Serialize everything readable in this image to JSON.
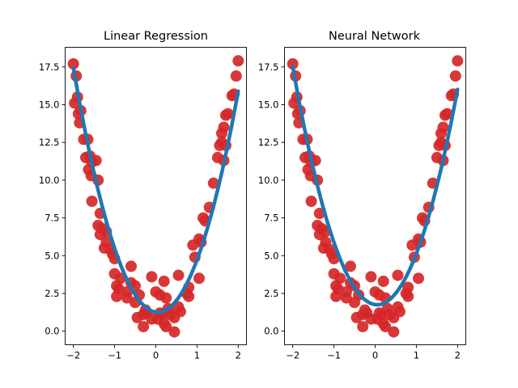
{
  "chart_data": [
    {
      "type": "scatter",
      "title": "Linear Regression",
      "xlim": [
        -2.2,
        2.2
      ],
      "ylim": [
        -0.9,
        18.8
      ],
      "xticks": [
        -2,
        -1,
        0,
        1,
        2
      ],
      "xtick_labels": [
        "−2",
        "−1",
        "0",
        "1",
        "2"
      ],
      "yticks": [
        0,
        2.5,
        5,
        7.5,
        10,
        12.5,
        15,
        17.5
      ],
      "ytick_labels": [
        "0.0",
        "2.5",
        "5.0",
        "7.5",
        "10.0",
        "12.5",
        "15.0",
        "17.5"
      ],
      "points_color": "#d62728",
      "line_color": "#1f77b4",
      "points": [
        [
          -2.0,
          17.7
        ],
        [
          -1.93,
          16.9
        ],
        [
          -1.97,
          15.1
        ],
        [
          -1.9,
          15.5
        ],
        [
          -1.88,
          14.4
        ],
        [
          -1.82,
          14.6
        ],
        [
          -1.85,
          13.8
        ],
        [
          -1.75,
          12.7
        ],
        [
          -1.65,
          12.7
        ],
        [
          -1.7,
          11.5
        ],
        [
          -1.6,
          11.6
        ],
        [
          -1.55,
          11.2
        ],
        [
          -1.45,
          11.3
        ],
        [
          -1.63,
          10.7
        ],
        [
          -1.57,
          10.3
        ],
        [
          -1.4,
          10.0
        ],
        [
          -1.55,
          8.6
        ],
        [
          -1.35,
          7.8
        ],
        [
          -1.4,
          7.0
        ],
        [
          -1.3,
          6.8
        ],
        [
          -1.2,
          6.6
        ],
        [
          -1.35,
          6.4
        ],
        [
          -1.2,
          5.9
        ],
        [
          -1.25,
          5.5
        ],
        [
          -1.1,
          5.4
        ],
        [
          -1.05,
          5.1
        ],
        [
          -1.0,
          4.8
        ],
        [
          -0.6,
          4.3
        ],
        [
          -1.0,
          3.8
        ],
        [
          -0.85,
          3.5
        ],
        [
          -0.95,
          3.0
        ],
        [
          -0.9,
          2.8
        ],
        [
          -0.6,
          3.2
        ],
        [
          -0.5,
          3.0
        ],
        [
          -0.7,
          2.6
        ],
        [
          -0.95,
          2.3
        ],
        [
          -0.7,
          2.2
        ],
        [
          -0.4,
          2.4
        ],
        [
          -0.5,
          1.9
        ],
        [
          -0.3,
          1.1
        ],
        [
          -0.25,
          1.4
        ],
        [
          -0.2,
          1.2
        ],
        [
          -0.45,
          0.9
        ],
        [
          -0.3,
          0.3
        ],
        [
          -0.1,
          0.8
        ],
        [
          0.05,
          0.8
        ],
        [
          0.15,
          1.1
        ],
        [
          0.3,
          1.5
        ],
        [
          0.2,
          0.5
        ],
        [
          0.35,
          1.1
        ],
        [
          0.45,
          0.9
        ],
        [
          0.25,
          0.3
        ],
        [
          0.45,
          -0.05
        ],
        [
          0.1,
          1.2
        ],
        [
          0.0,
          2.6
        ],
        [
          0.1,
          2.4
        ],
        [
          0.25,
          2.2
        ],
        [
          -0.1,
          3.6
        ],
        [
          0.2,
          3.3
        ],
        [
          0.55,
          1.6
        ],
        [
          0.6,
          1.3
        ],
        [
          0.75,
          2.5
        ],
        [
          0.8,
          2.3
        ],
        [
          0.8,
          2.9
        ],
        [
          0.55,
          3.7
        ],
        [
          1.05,
          3.5
        ],
        [
          0.95,
          4.9
        ],
        [
          0.9,
          5.7
        ],
        [
          1.1,
          5.9
        ],
        [
          1.05,
          6.1
        ],
        [
          1.15,
          7.5
        ],
        [
          1.2,
          7.3
        ],
        [
          1.3,
          8.2
        ],
        [
          1.4,
          9.8
        ],
        [
          1.5,
          11.5
        ],
        [
          1.55,
          12.3
        ],
        [
          1.6,
          13.1
        ],
        [
          1.65,
          11.3
        ],
        [
          1.7,
          12.3
        ],
        [
          1.65,
          13.5
        ],
        [
          1.7,
          14.3
        ],
        [
          1.75,
          14.4
        ],
        [
          1.85,
          15.6
        ],
        [
          1.9,
          15.7
        ],
        [
          1.95,
          16.9
        ],
        [
          2.0,
          17.9
        ],
        [
          1.6,
          12.5
        ]
      ],
      "fit": {
        "a": 3.85,
        "b": 0.05,
        "c": 1.25
      }
    },
    {
      "type": "scatter",
      "title": "Neural Network",
      "xlim": [
        -2.2,
        2.2
      ],
      "ylim": [
        -0.9,
        18.8
      ],
      "xticks": [
        -2,
        -1,
        0,
        1,
        2
      ],
      "xtick_labels": [
        "−2",
        "−1",
        "0",
        "1",
        "2"
      ],
      "yticks": [
        0,
        2.5,
        5,
        7.5,
        10,
        12.5,
        15,
        17.5
      ],
      "ytick_labels": [
        "0.0",
        "2.5",
        "5.0",
        "7.5",
        "10.0",
        "12.5",
        "15.0",
        "17.5"
      ],
      "points_color": "#d62728",
      "line_color": "#1f77b4",
      "points": [
        [
          -2.0,
          17.7
        ],
        [
          -1.93,
          16.9
        ],
        [
          -1.97,
          15.1
        ],
        [
          -1.9,
          15.5
        ],
        [
          -1.88,
          14.4
        ],
        [
          -1.82,
          14.6
        ],
        [
          -1.85,
          13.8
        ],
        [
          -1.75,
          12.7
        ],
        [
          -1.65,
          12.7
        ],
        [
          -1.7,
          11.5
        ],
        [
          -1.6,
          11.6
        ],
        [
          -1.55,
          11.2
        ],
        [
          -1.45,
          11.3
        ],
        [
          -1.63,
          10.7
        ],
        [
          -1.57,
          10.3
        ],
        [
          -1.4,
          10.0
        ],
        [
          -1.55,
          8.6
        ],
        [
          -1.35,
          7.8
        ],
        [
          -1.4,
          7.0
        ],
        [
          -1.3,
          6.8
        ],
        [
          -1.2,
          6.6
        ],
        [
          -1.35,
          6.4
        ],
        [
          -1.2,
          5.9
        ],
        [
          -1.25,
          5.5
        ],
        [
          -1.1,
          5.4
        ],
        [
          -1.05,
          5.1
        ],
        [
          -1.0,
          4.8
        ],
        [
          -0.6,
          4.3
        ],
        [
          -1.0,
          3.8
        ],
        [
          -0.85,
          3.5
        ],
        [
          -0.95,
          3.0
        ],
        [
          -0.9,
          2.8
        ],
        [
          -0.6,
          3.2
        ],
        [
          -0.5,
          3.0
        ],
        [
          -0.7,
          2.6
        ],
        [
          -0.95,
          2.3
        ],
        [
          -0.7,
          2.2
        ],
        [
          -0.4,
          2.4
        ],
        [
          -0.5,
          1.9
        ],
        [
          -0.3,
          1.1
        ],
        [
          -0.25,
          1.4
        ],
        [
          -0.2,
          1.2
        ],
        [
          -0.45,
          0.9
        ],
        [
          -0.3,
          0.3
        ],
        [
          -0.1,
          0.8
        ],
        [
          0.05,
          0.8
        ],
        [
          0.15,
          1.1
        ],
        [
          0.3,
          1.5
        ],
        [
          0.2,
          0.5
        ],
        [
          0.35,
          1.1
        ],
        [
          0.45,
          0.9
        ],
        [
          0.25,
          0.3
        ],
        [
          0.45,
          -0.05
        ],
        [
          0.1,
          1.2
        ],
        [
          0.0,
          2.6
        ],
        [
          0.1,
          2.4
        ],
        [
          0.25,
          2.2
        ],
        [
          -0.1,
          3.6
        ],
        [
          0.2,
          3.3
        ],
        [
          0.55,
          1.6
        ],
        [
          0.6,
          1.3
        ],
        [
          0.75,
          2.5
        ],
        [
          0.8,
          2.3
        ],
        [
          0.8,
          2.9
        ],
        [
          0.55,
          3.7
        ],
        [
          1.05,
          3.5
        ],
        [
          0.95,
          4.9
        ],
        [
          0.9,
          5.7
        ],
        [
          1.1,
          5.9
        ],
        [
          1.05,
          6.1
        ],
        [
          1.15,
          7.5
        ],
        [
          1.2,
          7.3
        ],
        [
          1.3,
          8.2
        ],
        [
          1.4,
          9.8
        ],
        [
          1.5,
          11.5
        ],
        [
          1.55,
          12.3
        ],
        [
          1.6,
          13.1
        ],
        [
          1.65,
          11.3
        ],
        [
          1.7,
          12.3
        ],
        [
          1.65,
          13.5
        ],
        [
          1.7,
          14.3
        ],
        [
          1.75,
          14.4
        ],
        [
          1.85,
          15.6
        ],
        [
          1.9,
          15.7
        ],
        [
          1.95,
          16.9
        ],
        [
          2.0,
          17.9
        ],
        [
          1.6,
          12.5
        ]
      ],
      "fit": {
        "a": 3.75,
        "b": 0.05,
        "c": 1.75
      }
    }
  ]
}
